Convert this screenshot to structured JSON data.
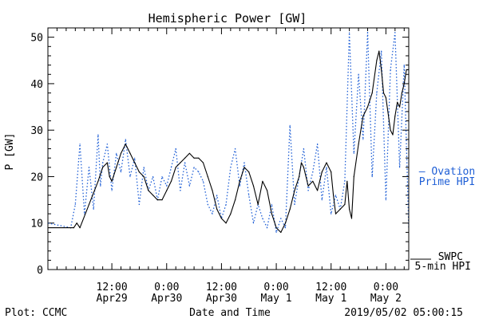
{
  "chart_data": {
    "type": "line",
    "title": "Hemispheric Power [GW]",
    "ylabel": "P [GW]",
    "xlabel": "Date and Time",
    "ylim": [
      0,
      52
    ],
    "yticks": [
      0,
      10,
      20,
      30,
      40,
      50
    ],
    "xlim": [
      "2019-04-28T22:00",
      "2019-05-02T05:00"
    ],
    "xticks": [
      {
        "t": "2019-04-29T12:00",
        "line1": "12:00",
        "line2": "Apr29"
      },
      {
        "t": "2019-04-30T00:00",
        "line1": "0:00",
        "line2": "Apr30"
      },
      {
        "t": "2019-04-30T12:00",
        "line1": "12:00",
        "line2": "Apr30"
      },
      {
        "t": "2019-05-01T00:00",
        "line1": "0:00",
        "line2": "May 1"
      },
      {
        "t": "2019-05-01T12:00",
        "line1": "12:00",
        "line2": "May 1"
      },
      {
        "t": "2019-05-02T00:00",
        "line1": "0:00",
        "line2": "May 2"
      }
    ],
    "series": [
      {
        "name": "SWPC 5-min HPI",
        "legend_lines": [
          "SWPC",
          "5-min HPI"
        ],
        "color": "#000000",
        "style": "solid",
        "points": [
          [
            "2019-04-28T22:00",
            9
          ],
          [
            "2019-04-29T03:00",
            9
          ],
          [
            "2019-04-29T03:40",
            9
          ],
          [
            "2019-04-29T04:20",
            10
          ],
          [
            "2019-04-29T05:00",
            9
          ],
          [
            "2019-04-29T07:00",
            14
          ],
          [
            "2019-04-29T09:00",
            19
          ],
          [
            "2019-04-29T10:00",
            22
          ],
          [
            "2019-04-29T11:00",
            23
          ],
          [
            "2019-04-29T11:30",
            20
          ],
          [
            "2019-04-29T12:00",
            19
          ],
          [
            "2019-04-29T13:00",
            22
          ],
          [
            "2019-04-29T14:00",
            25
          ],
          [
            "2019-04-29T15:00",
            27
          ],
          [
            "2019-04-29T16:00",
            25
          ],
          [
            "2019-04-29T17:00",
            23
          ],
          [
            "2019-04-29T18:00",
            21
          ],
          [
            "2019-04-29T19:00",
            20
          ],
          [
            "2019-04-29T20:00",
            17
          ],
          [
            "2019-04-29T21:00",
            16
          ],
          [
            "2019-04-29T22:00",
            15
          ],
          [
            "2019-04-29T23:00",
            15
          ],
          [
            "2019-04-30T00:00",
            17
          ],
          [
            "2019-04-30T01:00",
            19
          ],
          [
            "2019-04-30T02:00",
            22
          ],
          [
            "2019-04-30T03:00",
            23
          ],
          [
            "2019-04-30T04:00",
            24
          ],
          [
            "2019-04-30T05:00",
            25
          ],
          [
            "2019-04-30T06:00",
            24
          ],
          [
            "2019-04-30T07:00",
            24
          ],
          [
            "2019-04-30T08:00",
            23
          ],
          [
            "2019-04-30T09:00",
            20
          ],
          [
            "2019-04-30T10:00",
            17
          ],
          [
            "2019-04-30T11:00",
            13
          ],
          [
            "2019-04-30T12:00",
            11
          ],
          [
            "2019-04-30T13:00",
            10
          ],
          [
            "2019-04-30T14:00",
            12
          ],
          [
            "2019-04-30T15:00",
            15
          ],
          [
            "2019-04-30T16:00",
            19
          ],
          [
            "2019-04-30T17:00",
            22
          ],
          [
            "2019-04-30T18:00",
            21
          ],
          [
            "2019-04-30T19:00",
            18
          ],
          [
            "2019-04-30T20:00",
            14
          ],
          [
            "2019-04-30T21:00",
            19
          ],
          [
            "2019-04-30T22:00",
            17
          ],
          [
            "2019-04-30T23:00",
            12
          ],
          [
            "2019-05-01T00:00",
            9
          ],
          [
            "2019-05-01T01:00",
            8
          ],
          [
            "2019-05-01T02:00",
            10
          ],
          [
            "2019-05-01T03:00",
            13
          ],
          [
            "2019-05-01T04:00",
            17
          ],
          [
            "2019-05-01T05:00",
            20
          ],
          [
            "2019-05-01T05:30",
            23
          ],
          [
            "2019-05-01T06:00",
            22
          ],
          [
            "2019-05-01T07:00",
            18
          ],
          [
            "2019-05-01T08:00",
            19
          ],
          [
            "2019-05-01T09:00",
            17
          ],
          [
            "2019-05-01T10:00",
            21
          ],
          [
            "2019-05-01T11:00",
            23
          ],
          [
            "2019-05-01T12:00",
            21
          ],
          [
            "2019-05-01T12:30",
            16
          ],
          [
            "2019-05-01T13:00",
            12
          ],
          [
            "2019-05-01T14:00",
            13
          ],
          [
            "2019-05-01T15:00",
            14
          ],
          [
            "2019-05-01T15:30",
            19
          ],
          [
            "2019-05-01T16:00",
            13
          ],
          [
            "2019-05-01T16:30",
            11
          ],
          [
            "2019-05-01T17:00",
            20
          ],
          [
            "2019-05-01T18:00",
            27
          ],
          [
            "2019-05-01T19:00",
            33
          ],
          [
            "2019-05-01T20:00",
            35
          ],
          [
            "2019-05-01T21:00",
            38
          ],
          [
            "2019-05-01T22:00",
            45
          ],
          [
            "2019-05-01T22:30",
            47
          ],
          [
            "2019-05-01T23:00",
            43
          ],
          [
            "2019-05-01T23:30",
            38
          ],
          [
            "2019-05-02T00:00",
            37
          ],
          [
            "2019-05-02T01:00",
            30
          ],
          [
            "2019-05-02T01:30",
            29
          ],
          [
            "2019-05-02T02:00",
            33
          ],
          [
            "2019-05-02T02:30",
            36
          ],
          [
            "2019-05-02T03:00",
            35
          ],
          [
            "2019-05-02T03:30",
            38
          ],
          [
            "2019-05-02T04:00",
            40
          ],
          [
            "2019-05-02T04:30",
            43
          ],
          [
            "2019-05-02T05:00",
            43
          ]
        ]
      },
      {
        "name": "Ovation Prime HPI",
        "legend_lines": [
          "— Ovation",
          "Prime HPI"
        ],
        "color": "#1f5fd6",
        "style": "dotted",
        "points": [
          [
            "2019-04-28T22:00",
            10
          ],
          [
            "2019-04-29T03:00",
            9
          ],
          [
            "2019-04-29T04:00",
            14
          ],
          [
            "2019-04-29T05:00",
            27
          ],
          [
            "2019-04-29T06:00",
            12
          ],
          [
            "2019-04-29T07:00",
            22
          ],
          [
            "2019-04-29T08:00",
            13
          ],
          [
            "2019-04-29T09:00",
            29
          ],
          [
            "2019-04-29T09:30",
            18
          ],
          [
            "2019-04-29T10:00",
            23
          ],
          [
            "2019-04-29T11:00",
            27
          ],
          [
            "2019-04-29T12:00",
            17
          ],
          [
            "2019-04-29T13:00",
            25
          ],
          [
            "2019-04-29T14:00",
            21
          ],
          [
            "2019-04-29T15:00",
            28
          ],
          [
            "2019-04-29T16:00",
            20
          ],
          [
            "2019-04-29T17:00",
            24
          ],
          [
            "2019-04-29T18:00",
            14
          ],
          [
            "2019-04-29T19:00",
            22
          ],
          [
            "2019-04-29T20:00",
            17
          ],
          [
            "2019-04-29T21:00",
            20
          ],
          [
            "2019-04-29T22:00",
            15
          ],
          [
            "2019-04-29T23:00",
            20
          ],
          [
            "2019-04-30T00:00",
            18
          ],
          [
            "2019-04-30T01:00",
            22
          ],
          [
            "2019-04-30T02:00",
            26
          ],
          [
            "2019-04-30T03:00",
            17
          ],
          [
            "2019-04-30T04:00",
            23
          ],
          [
            "2019-04-30T05:00",
            18
          ],
          [
            "2019-04-30T06:00",
            22
          ],
          [
            "2019-04-30T07:00",
            21
          ],
          [
            "2019-04-30T08:00",
            19
          ],
          [
            "2019-04-30T09:00",
            14
          ],
          [
            "2019-04-30T10:00",
            12
          ],
          [
            "2019-04-30T11:00",
            16
          ],
          [
            "2019-04-30T12:00",
            11
          ],
          [
            "2019-04-30T13:00",
            14
          ],
          [
            "2019-04-30T14:00",
            22
          ],
          [
            "2019-04-30T15:00",
            26
          ],
          [
            "2019-04-30T16:00",
            18
          ],
          [
            "2019-04-30T17:00",
            23
          ],
          [
            "2019-04-30T18:00",
            16
          ],
          [
            "2019-04-30T19:00",
            10
          ],
          [
            "2019-04-30T20:00",
            14
          ],
          [
            "2019-04-30T21:00",
            11
          ],
          [
            "2019-04-30T22:00",
            9
          ],
          [
            "2019-04-30T23:00",
            14
          ],
          [
            "2019-05-01T00:00",
            8
          ],
          [
            "2019-05-01T01:00",
            11
          ],
          [
            "2019-05-01T02:00",
            9
          ],
          [
            "2019-05-01T03:00",
            31
          ],
          [
            "2019-05-01T04:00",
            14
          ],
          [
            "2019-05-01T05:00",
            20
          ],
          [
            "2019-05-01T06:00",
            26
          ],
          [
            "2019-05-01T07:00",
            17
          ],
          [
            "2019-05-01T08:00",
            21
          ],
          [
            "2019-05-01T09:00",
            27
          ],
          [
            "2019-05-01T10:00",
            15
          ],
          [
            "2019-05-01T11:00",
            22
          ],
          [
            "2019-05-01T12:00",
            12
          ],
          [
            "2019-05-01T13:00",
            16
          ],
          [
            "2019-05-01T14:00",
            13
          ],
          [
            "2019-05-01T15:00",
            19
          ],
          [
            "2019-05-01T16:00",
            51
          ],
          [
            "2019-05-01T17:00",
            25
          ],
          [
            "2019-05-01T18:00",
            42
          ],
          [
            "2019-05-01T19:00",
            28
          ],
          [
            "2019-05-01T20:00",
            51
          ],
          [
            "2019-05-01T21:00",
            20
          ],
          [
            "2019-05-01T22:00",
            38
          ],
          [
            "2019-05-01T23:00",
            47
          ],
          [
            "2019-05-02T00:00",
            15
          ],
          [
            "2019-05-02T01:00",
            43
          ],
          [
            "2019-05-02T02:00",
            51
          ],
          [
            "2019-05-02T03:00",
            22
          ],
          [
            "2019-05-02T04:00",
            44
          ],
          [
            "2019-05-02T05:00",
            9
          ]
        ]
      }
    ],
    "footer_left": "Plot: CCMC",
    "footer_right": "2019/05/02 05:00:15"
  }
}
